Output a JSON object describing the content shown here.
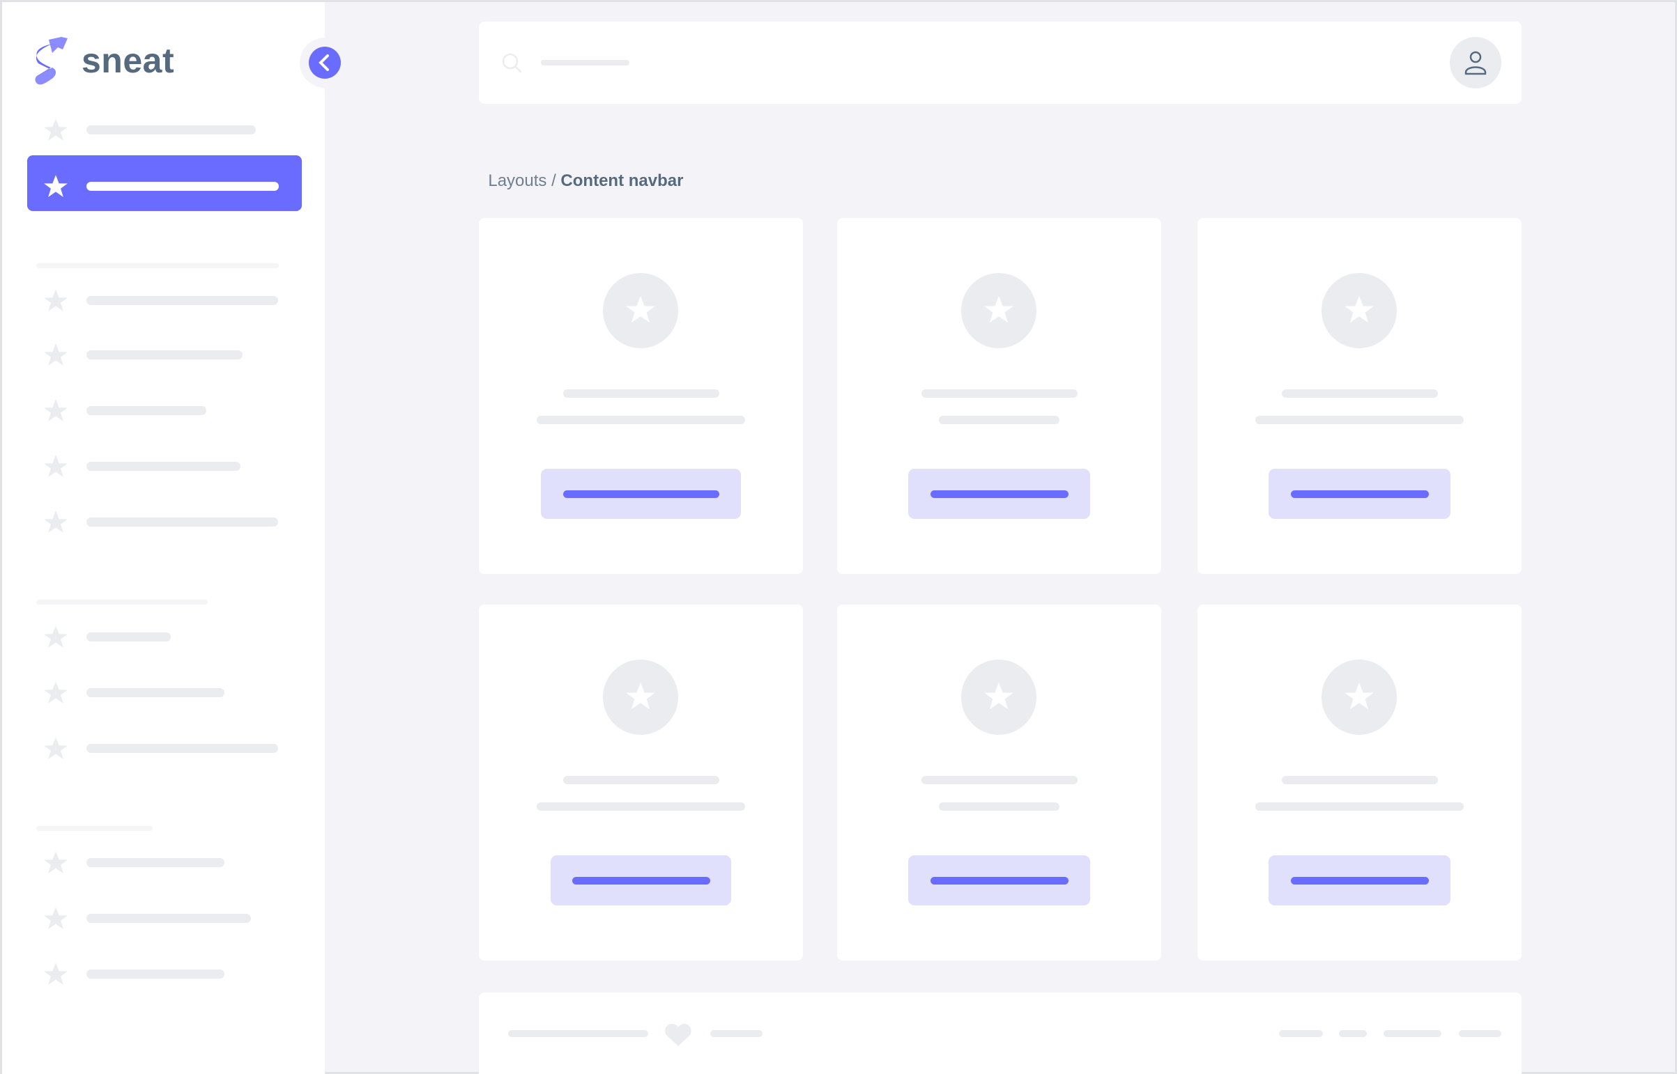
{
  "brand": {
    "name": "sneat"
  },
  "breadcrumb": {
    "parent": "Layouts",
    "separator": " / ",
    "current": "Content navbar"
  },
  "colors": {
    "primary": "#696cff",
    "primary_light": "#e0e0fd",
    "skeleton": "#ebecf0",
    "background": "#f4f4f8",
    "text": "#566a7f"
  },
  "icons": {
    "sidebar_items": "star-icon",
    "card": "star-icon",
    "search": "search-icon",
    "user": "user-icon",
    "collapse": "chevron-left-icon",
    "footer": "heart-icon"
  },
  "sidebar": {
    "active_index": 1,
    "item_count": 13
  }
}
